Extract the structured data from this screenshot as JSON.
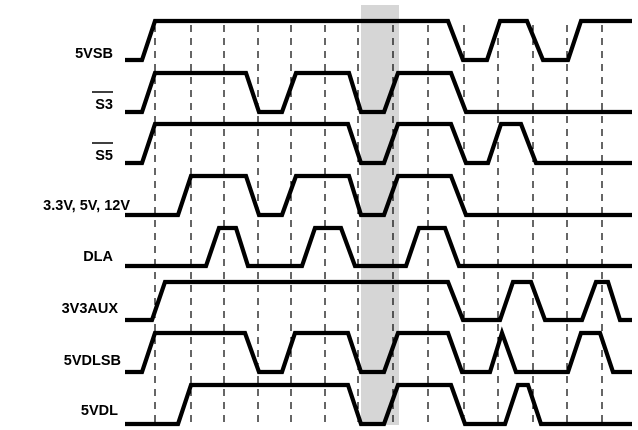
{
  "signals": [
    {
      "label": "5VSB",
      "overbar": false
    },
    {
      "label": "S3",
      "overbar": true
    },
    {
      "label": "S5",
      "overbar": true
    },
    {
      "label": "3.3V, 5V, 12V",
      "overbar": false
    },
    {
      "label": "DLA",
      "overbar": false
    },
    {
      "label": "3V3AUX",
      "overbar": false
    },
    {
      "label": "5VDLSB",
      "overbar": false
    },
    {
      "label": "5VDL",
      "overbar": false
    }
  ],
  "colors": {
    "trace": "#000000",
    "highlight_band": "#d6d6d6",
    "background": "#ffffff"
  }
}
